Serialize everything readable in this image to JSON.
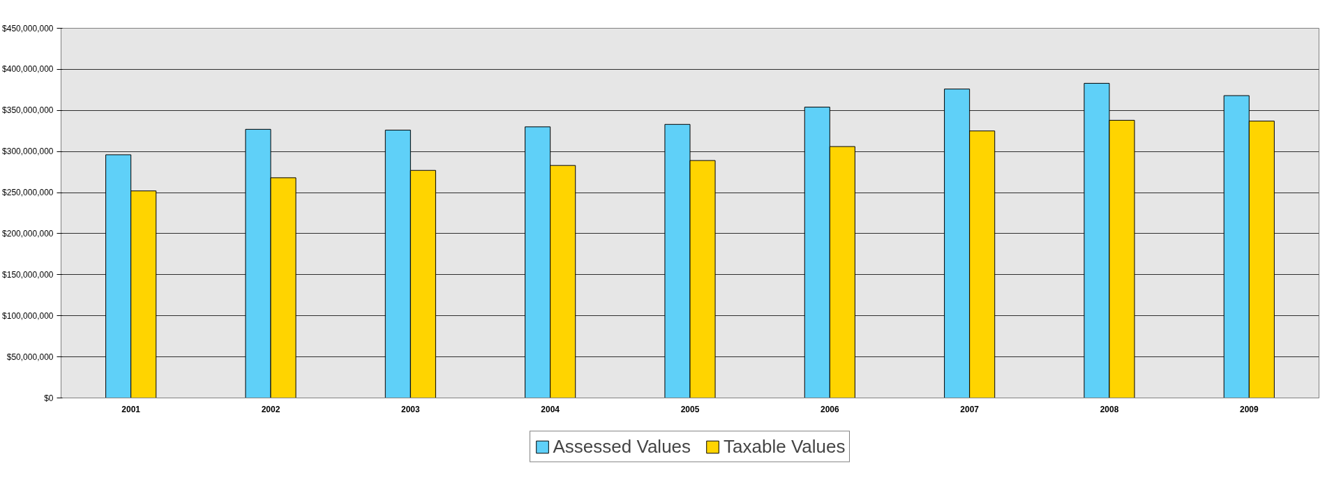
{
  "chart_data": {
    "type": "bar",
    "categories": [
      "2001",
      "2002",
      "2003",
      "2004",
      "2005",
      "2006",
      "2007",
      "2008",
      "2009"
    ],
    "series": [
      {
        "name": "Assessed Values",
        "color": "#5fd0f8",
        "values": [
          296000000,
          327000000,
          326000000,
          330000000,
          333000000,
          354000000,
          376000000,
          383000000,
          368000000
        ]
      },
      {
        "name": "Taxable Values",
        "color": "#ffd400",
        "values": [
          252000000,
          268000000,
          277000000,
          283000000,
          289000000,
          306000000,
          325000000,
          338000000,
          337000000
        ]
      }
    ],
    "ylim": [
      0,
      450000000
    ],
    "yticks": [
      {
        "value": 0,
        "label": "$0"
      },
      {
        "value": 50000000,
        "label": "$50,000,000"
      },
      {
        "value": 100000000,
        "label": "$100,000,000"
      },
      {
        "value": 150000000,
        "label": "$150,000,000"
      },
      {
        "value": 200000000,
        "label": "$200,000,000"
      },
      {
        "value": 250000000,
        "label": "$250,000,000"
      },
      {
        "value": 300000000,
        "label": "$300,000,000"
      },
      {
        "value": 350000000,
        "label": "$350,000,000"
      },
      {
        "value": 400000000,
        "label": "$400,000,000"
      },
      {
        "value": 450000000,
        "label": "$450,000,000"
      }
    ],
    "grid": "y",
    "legend": "bottom"
  }
}
